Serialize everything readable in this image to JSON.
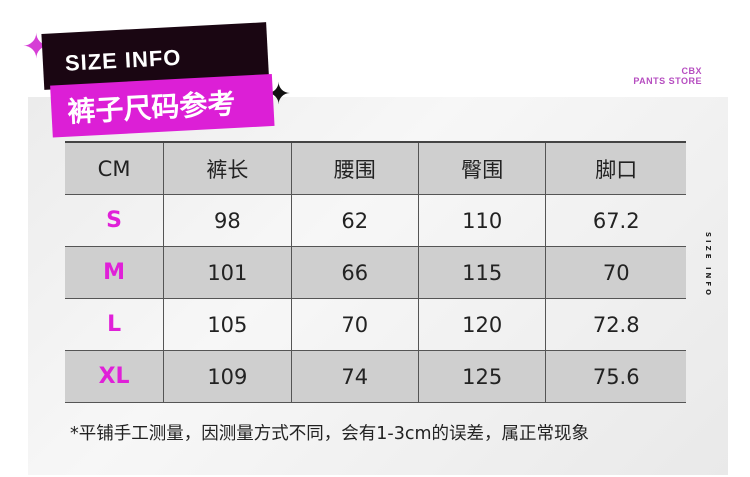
{
  "badge": {
    "title": "SIZE INFO",
    "subtitle": "裤子尺码参考"
  },
  "store": {
    "line1": "CBX",
    "line2": "PANTS STORE"
  },
  "side_label": "SIZE INFO",
  "table": {
    "headers": [
      "CM",
      "裤长",
      "腰围",
      "臀围",
      "脚口"
    ],
    "rows": [
      [
        "S",
        "98",
        "62",
        "110",
        "67.2"
      ],
      [
        "M",
        "101",
        "66",
        "115",
        "70"
      ],
      [
        "L",
        "105",
        "70",
        "120",
        "72.8"
      ],
      [
        "XL",
        "109",
        "74",
        "125",
        "75.6"
      ]
    ]
  },
  "note": "*平铺手工测量，因测量方式不同，会有1-3cm的误差，属正常现象",
  "colors": {
    "accent": "#dc1fd6",
    "dark": "#1a0612",
    "store": "#b64dc0"
  }
}
